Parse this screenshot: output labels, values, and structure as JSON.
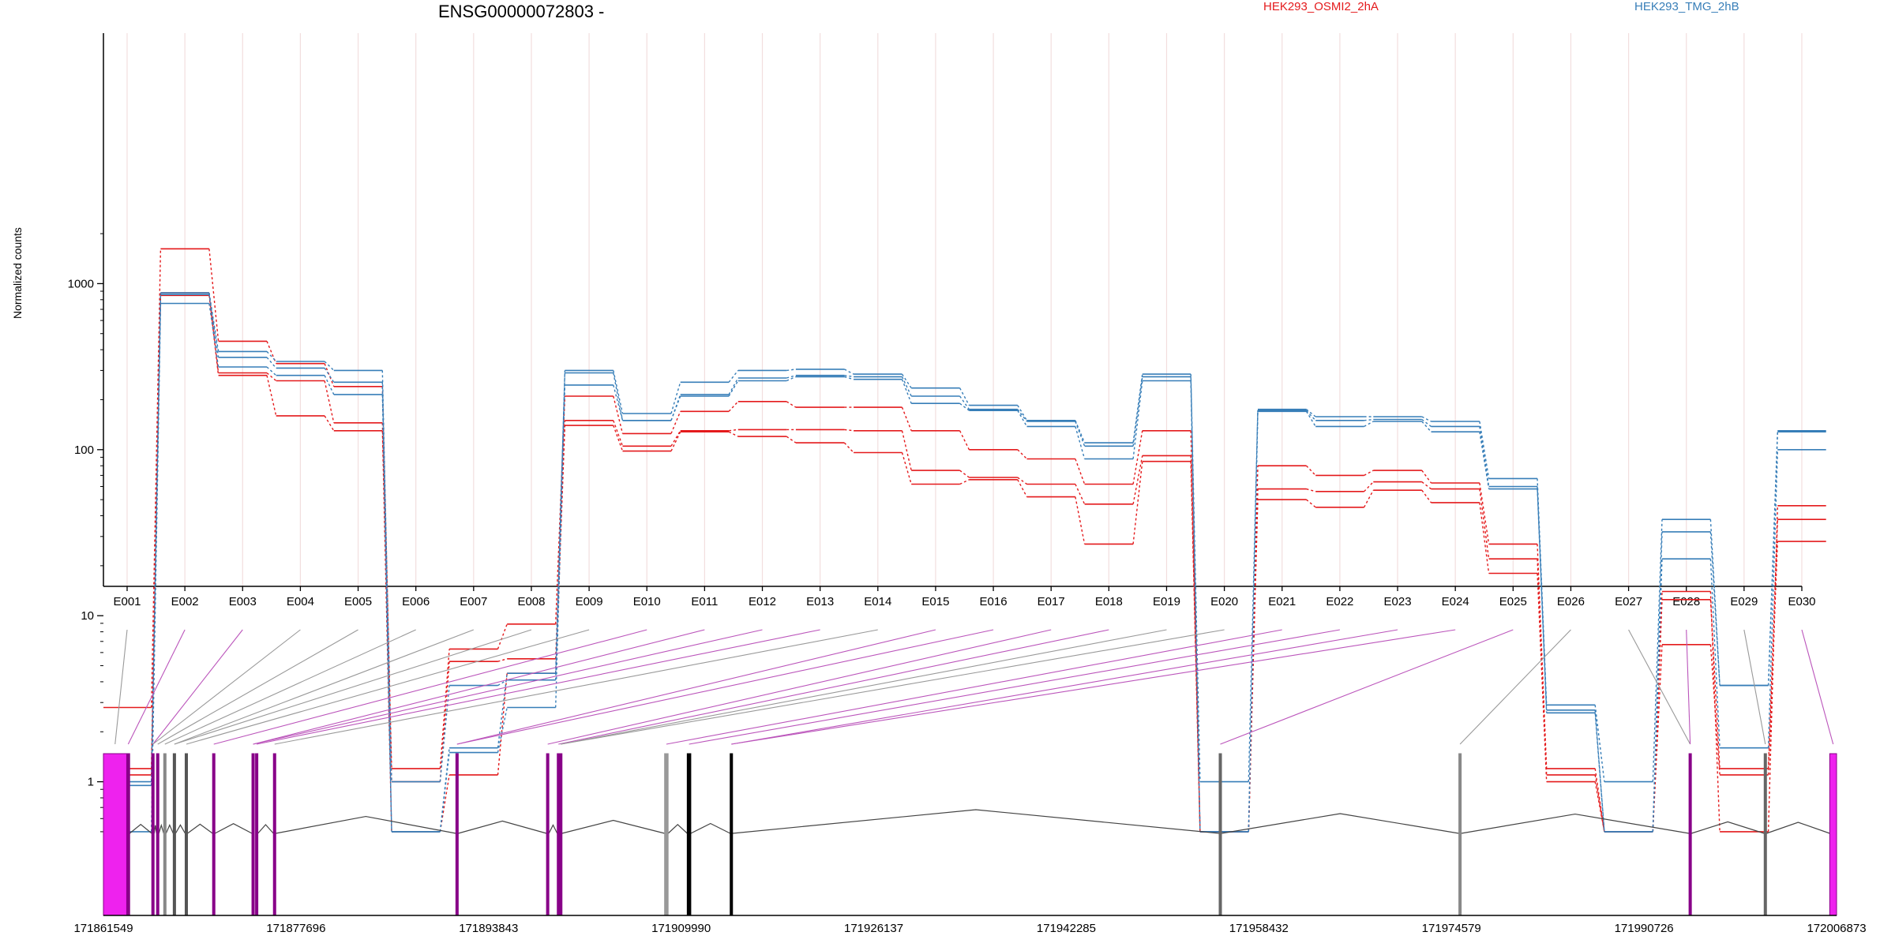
{
  "chart_data": {
    "type": "line",
    "title": "ENSG00000072803 -",
    "ylabel": "Normalized counts",
    "yscale": "log",
    "ylim": [
      0.5,
      2000
    ],
    "ytick_labels": [
      "1",
      "10",
      "100",
      "1000"
    ],
    "grid": "vertical, faint",
    "legend_placement": "top",
    "categories": [
      "E001",
      "E002",
      "E003",
      "E004",
      "E005",
      "E006",
      "E007",
      "E008",
      "E009",
      "E010",
      "E011",
      "E012",
      "E013",
      "E014",
      "E015",
      "E016",
      "E017",
      "E018",
      "E019",
      "E020",
      "E021",
      "E022",
      "E023",
      "E024",
      "E025",
      "E026",
      "E027",
      "E028",
      "E029",
      "E030"
    ],
    "legend": [
      {
        "name": "HEK293_OSMI2_2hA",
        "color": "#e41a1c"
      },
      {
        "name": "HEK293_TMG_2hB",
        "color": "#377eb8"
      }
    ],
    "series": [
      {
        "group": "HEK293_OSMI2_2hA",
        "color": "#e41a1c",
        "values": [
          2.8,
          1620,
          450,
          330,
          240,
          1.2,
          6.3,
          8.9,
          210,
          125,
          170,
          195,
          180,
          180,
          130,
          100,
          88,
          62,
          130,
          0.5,
          80,
          70,
          75,
          63,
          27,
          1.2,
          0.5,
          14,
          0.5,
          46
        ]
      },
      {
        "group": "HEK293_OSMI2_2hA",
        "color": "#e41a1c",
        "values": [
          1.2,
          880,
          290,
          260,
          145,
          1.0,
          5.3,
          5.5,
          150,
          105,
          130,
          132,
          132,
          130,
          75,
          68,
          62,
          47,
          92,
          0.5,
          58,
          56,
          64,
          58,
          22,
          1.1,
          0.5,
          12.5,
          1.2,
          38
        ]
      },
      {
        "group": "HEK293_OSMI2_2hA",
        "color": "#e41a1c",
        "values": [
          1.1,
          850,
          280,
          160,
          130,
          0.5,
          1.1,
          4.5,
          140,
          98,
          128,
          120,
          110,
          96,
          62,
          66,
          52,
          27,
          85,
          0.5,
          50,
          45,
          57,
          48,
          18,
          1.0,
          0.5,
          6.7,
          1.1,
          28
        ]
      },
      {
        "group": "HEK293_TMG_2hB",
        "color": "#377eb8",
        "values": [
          1.0,
          880,
          390,
          340,
          300,
          1.0,
          3.8,
          4.1,
          300,
          165,
          255,
          300,
          305,
          285,
          235,
          185,
          150,
          110,
          285,
          1.0,
          175,
          158,
          158,
          148,
          67,
          2.9,
          1.0,
          38,
          3.8,
          130
        ]
      },
      {
        "group": "HEK293_TMG_2hB",
        "color": "#377eb8",
        "values": [
          0.95,
          860,
          360,
          310,
          255,
          0.5,
          1.6,
          4.5,
          290,
          150,
          215,
          270,
          280,
          275,
          210,
          175,
          148,
          105,
          275,
          0.5,
          172,
          150,
          152,
          138,
          60,
          2.7,
          0.5,
          32,
          3.8,
          128
        ]
      },
      {
        "group": "HEK293_TMG_2hB",
        "color": "#377eb8",
        "values": [
          0.5,
          760,
          315,
          280,
          215,
          0.5,
          1.5,
          2.8,
          245,
          150,
          210,
          260,
          275,
          265,
          190,
          172,
          138,
          88,
          260,
          0.5,
          170,
          138,
          148,
          128,
          58,
          2.6,
          0.5,
          22,
          1.6,
          100
        ]
      }
    ],
    "gene_model": {
      "coord_labels": [
        "171861549",
        "171877696",
        "171893843",
        "171909990",
        "171926137",
        "171942285",
        "171958432",
        "171974579",
        "171990726",
        "172006873"
      ],
      "coord_start": 171861549,
      "coord_end": 172006873,
      "exons": [
        {
          "id": "E001",
          "start": 171861549,
          "end": 171863500,
          "color": "#ee22ee",
          "kind": "wide"
        },
        {
          "id": "E002",
          "start": 171863500,
          "end": 171863750,
          "color": "#880088",
          "kind": "thin"
        },
        {
          "id": "E003",
          "start": 171865600,
          "end": 171865800,
          "color": "#880088",
          "kind": "thin"
        },
        {
          "id": "E004",
          "start": 171866000,
          "end": 171866200,
          "color": "#880088",
          "kind": "thin"
        },
        {
          "id": "E005",
          "start": 171866600,
          "end": 171866800,
          "color": "#888888",
          "kind": "thin"
        },
        {
          "id": "E006",
          "start": 171867400,
          "end": 171867600,
          "color": "#555555",
          "kind": "thin"
        },
        {
          "id": "E007",
          "start": 171868400,
          "end": 171868600,
          "color": "#555555",
          "kind": "thin"
        },
        {
          "id": "E008",
          "start": 171870700,
          "end": 171870900,
          "color": "#880088",
          "kind": "thin"
        },
        {
          "id": "E009",
          "start": 171874000,
          "end": 171874200,
          "color": "#880088",
          "kind": "thin"
        },
        {
          "id": "E010",
          "start": 171874300,
          "end": 171874500,
          "color": "#880088",
          "kind": "thin"
        },
        {
          "id": "E011",
          "start": 171875800,
          "end": 171876000,
          "color": "#880088",
          "kind": "thin"
        },
        {
          "id": "E012",
          "start": 171891100,
          "end": 171891300,
          "color": "#880088",
          "kind": "thin"
        },
        {
          "id": "E013",
          "start": 171898700,
          "end": 171898900,
          "color": "#880088",
          "kind": "thin"
        },
        {
          "id": "E014",
          "start": 171899600,
          "end": 171899800,
          "color": "#880088",
          "kind": "thin"
        },
        {
          "id": "E015",
          "start": 171899800,
          "end": 171900000,
          "color": "#880088",
          "kind": "thin"
        },
        {
          "id": "E016",
          "start": 171908600,
          "end": 171908900,
          "color": "#999999",
          "kind": "thin"
        },
        {
          "id": "E017",
          "start": 171910500,
          "end": 171910800,
          "color": "#000000",
          "kind": "thin"
        },
        {
          "id": "E018",
          "start": 171914100,
          "end": 171914300,
          "color": "#000000",
          "kind": "thin"
        },
        {
          "id": "E019",
          "start": 171955100,
          "end": 171955300,
          "color": "#666666",
          "kind": "thin"
        },
        {
          "id": "E020",
          "start": 171975200,
          "end": 171975400,
          "color": "#888888",
          "kind": "thin"
        },
        {
          "id": "E021",
          "start": 171994500,
          "end": 171994700,
          "color": "#880088",
          "kind": "thin"
        },
        {
          "id": "E022",
          "start": 172000800,
          "end": 172001000,
          "color": "#666666",
          "kind": "thin"
        },
        {
          "id": "E023",
          "start": 172006300,
          "end": 172006873,
          "color": "#ee22ee",
          "kind": "wide"
        }
      ],
      "connector_colors": [
        "#999999",
        "#bb55bb",
        "#bb55bb",
        "#999999",
        "#999999",
        "#999999",
        "#999999",
        "#999999",
        "#999999",
        "#bb55bb",
        "#bb55bb",
        "#bb55bb",
        "#bb55bb",
        "#999999",
        "#bb55bb",
        "#bb55bb",
        "#bb55bb",
        "#bb55bb",
        "#999999",
        "#999999",
        "#bb55bb",
        "#bb55bb",
        "#bb55bb",
        "#bb55bb",
        "#bb55bb",
        "#999999",
        "#999999",
        "#bb55bb",
        "#999999",
        "#bb55bb"
      ]
    }
  }
}
